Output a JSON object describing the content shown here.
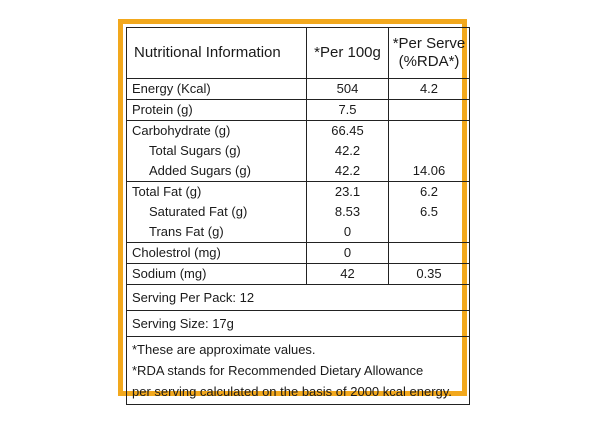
{
  "header": {
    "col1": "Nutritional Information",
    "col2": "*Per 100g",
    "col3_line1": "*Per Serve",
    "col3_line2": "(%RDA*)"
  },
  "rows": [
    {
      "labels": [
        "Energy (Kcal)"
      ],
      "per100": [
        "504"
      ],
      "serve": [
        "4.2"
      ]
    },
    {
      "labels": [
        "Protein (g)"
      ],
      "per100": [
        "7.5"
      ],
      "serve": [
        ""
      ]
    },
    {
      "labels": [
        "Carbohydrate (g)",
        "Total Sugars (g)",
        "Added Sugars (g)"
      ],
      "per100": [
        "66.45",
        "42.2",
        "42.2"
      ],
      "serve": [
        "",
        "",
        "14.06"
      ]
    },
    {
      "labels": [
        "Total Fat (g)",
        "Saturated Fat (g)",
        "Trans Fat (g)"
      ],
      "per100": [
        "23.1",
        "8.53",
        "0"
      ],
      "serve": [
        "6.2",
        "6.5",
        ""
      ]
    },
    {
      "labels": [
        "Cholestrol (mg)"
      ],
      "per100": [
        "0"
      ],
      "serve": [
        ""
      ]
    },
    {
      "labels": [
        "Sodium (mg)"
      ],
      "per100": [
        "42"
      ],
      "serve": [
        "0.35"
      ]
    }
  ],
  "serving_per_pack": "Serving Per Pack: 12",
  "serving_size": "Serving Size: 17g",
  "notes": [
    "*These are approximate values.",
    "*RDA stands for Recommended Dietary Allowance",
    "per serving calculated on the basis of 2000 kcal energy."
  ],
  "colors": {
    "border": "#f2a81d"
  }
}
